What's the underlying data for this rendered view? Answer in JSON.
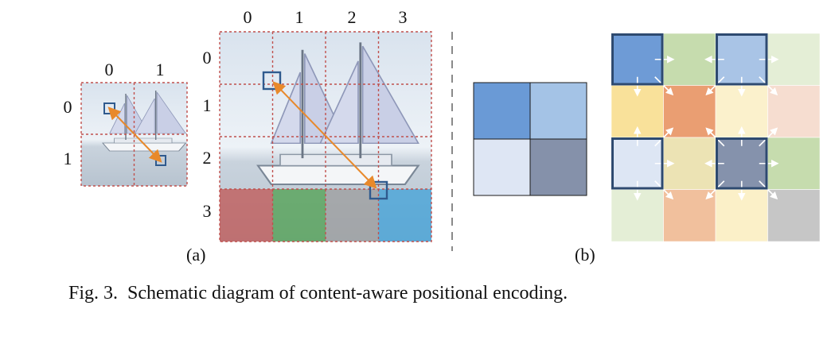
{
  "panel_a": {
    "small_grid": {
      "col_labels": [
        "0",
        "1"
      ],
      "row_labels": [
        "0",
        "1"
      ]
    },
    "large_grid": {
      "col_labels": [
        "0",
        "1",
        "2",
        "3"
      ],
      "row_labels": [
        "0",
        "1",
        "2",
        "3"
      ],
      "bottom_row_tints": [
        "#c0504d",
        "#4a9e4a",
        "#9a9a9a",
        "#3aa0d8"
      ]
    },
    "label": "(a)"
  },
  "panel_b": {
    "small_grid_colors": [
      "#6a9ad6",
      "#a4c3e6",
      "#dee6f4",
      "#8591aa"
    ],
    "large_grid_colors": [
      [
        "#6e9bd6",
        "#c6dcae",
        "#a9c4e6",
        "#e4eed6"
      ],
      [
        "#f9e19a",
        "#ea9e72",
        "#fbf1cc",
        "#f6ddd0"
      ],
      [
        "#dde6f4",
        "#ece3b4",
        "#8592ac",
        "#c6dcae"
      ],
      [
        "#e4eed6",
        "#f1c09d",
        "#fbf0c8",
        "#c6c6c6"
      ]
    ],
    "highlight_color": "#2e4a70",
    "label": "(b)"
  },
  "caption": "Fig. 3.  Schematic diagram of content-aware positional encoding."
}
